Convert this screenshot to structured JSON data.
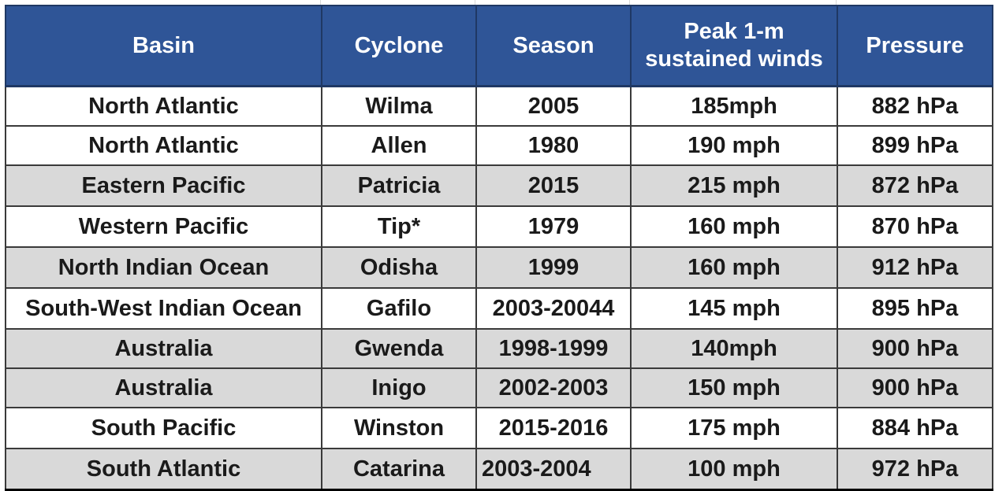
{
  "table": {
    "headers": {
      "basin": "Basin",
      "cyclone": "Cyclone",
      "season": "Season",
      "winds_line1": "Peak 1-m",
      "winds_line2": "sustained winds",
      "pressure": "Pressure"
    },
    "rows": [
      {
        "basin": "North Atlantic",
        "cyclone": "Wilma",
        "season": "2005",
        "winds": "185mph",
        "pressure": "882 hPa",
        "shaded": false
      },
      {
        "basin": "North Atlantic",
        "cyclone": "Allen",
        "season": "1980",
        "winds": "190 mph",
        "pressure": "899 hPa",
        "shaded": false
      },
      {
        "basin": "Eastern Pacific",
        "cyclone": "Patricia",
        "season": "2015",
        "winds": "215 mph",
        "pressure": "872 hPa",
        "shaded": true
      },
      {
        "basin": "Western Pacific",
        "cyclone": "Tip*",
        "season": "1979",
        "winds": "160 mph",
        "pressure": "870 hPa",
        "shaded": false
      },
      {
        "basin": "North Indian Ocean",
        "cyclone": "Odisha",
        "season": "1999",
        "winds": "160 mph",
        "pressure": "912 hPa",
        "shaded": true
      },
      {
        "basin": "South-West Indian Ocean",
        "cyclone": "Gafilo",
        "season": "2003-20044",
        "winds": "145 mph",
        "pressure": "895 hPa",
        "shaded": false
      },
      {
        "basin": "Australia",
        "cyclone": "Gwenda",
        "season": "1998-1999",
        "winds": "140mph",
        "pressure": "900 hPa",
        "shaded": true
      },
      {
        "basin": "Australia",
        "cyclone": "Inigo",
        "season": "2002-2003",
        "winds": "150 mph",
        "pressure": "900 hPa",
        "shaded": true
      },
      {
        "basin": "South Pacific",
        "cyclone": "Winston",
        "season": "2015-2016",
        "winds": "175 mph",
        "pressure": "884 hPa",
        "shaded": false
      },
      {
        "basin": "South Atlantic",
        "cyclone": "Catarina",
        "season": "2003-2004",
        "winds": "100 mph",
        "pressure": "972 hPa",
        "shaded": true
      }
    ]
  },
  "colors": {
    "header_bg": "#2f5597",
    "header_text": "#ffffff",
    "shaded_row": "#d9d9d9",
    "border": "#3a3a3a"
  }
}
